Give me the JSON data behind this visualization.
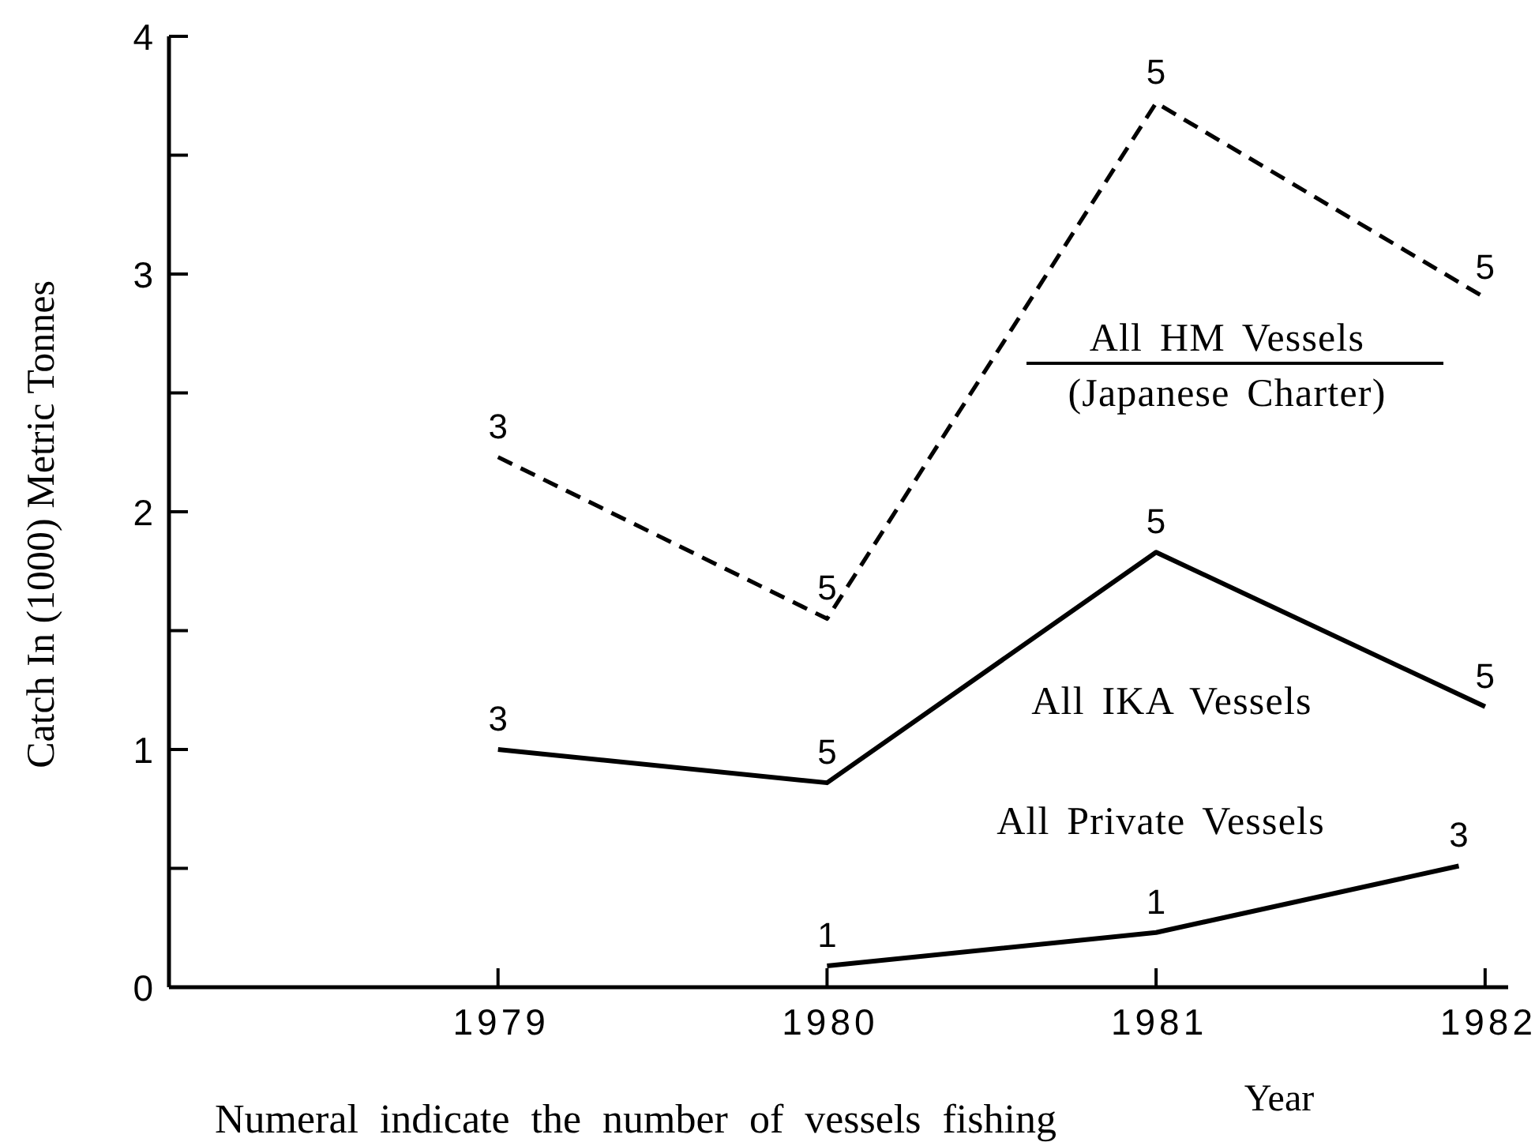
{
  "chart_data": {
    "type": "line",
    "x": [
      1979,
      1980,
      1981,
      1982
    ],
    "xlim": [
      1978,
      1982.07
    ],
    "xticks": [
      1979,
      1980,
      1981,
      1982
    ],
    "ylim": [
      0,
      4
    ],
    "yticks": [
      0,
      {
        "value": 0.5,
        "label": null
      },
      1,
      {
        "value": 1.5,
        "label": null
      },
      2,
      {
        "value": 2.5,
        "label": null
      },
      3,
      {
        "value": 3.5,
        "label": null
      },
      4
    ],
    "xlabel": "Year",
    "ylabel": "Catch In (1000) Metric Tonnes",
    "annotations": [
      "Numeral indicate the number of vessels fishing",
      {
        "text": "3",
        "x": 1979,
        "y": 2.23
      },
      {
        "text": "5",
        "x": 1980,
        "y": 1.55
      },
      {
        "text": "5",
        "x": 1981,
        "y": 3.72
      },
      {
        "text": "5",
        "x": 1982,
        "y": 2.9
      },
      {
        "text": "3",
        "x": 1979,
        "y": 1.0
      },
      {
        "text": "5",
        "x": 1980,
        "y": 0.86
      },
      {
        "text": "5",
        "x": 1981,
        "y": 1.83
      },
      {
        "text": "5",
        "x": 1982,
        "y": 1.18
      },
      {
        "text": "1",
        "x": 1980,
        "y": 0.09
      },
      {
        "text": "1",
        "x": 1981,
        "y": 0.23
      },
      {
        "text": "3",
        "x": 1981.92,
        "y": 0.51
      }
    ],
    "series": [
      {
        "name": "All HM Vessels\n(Japanese Charter)",
        "color": "#000000",
        "line_style": "dashed",
        "values": [
          2.23,
          1.55,
          3.72,
          2.9
        ]
      },
      {
        "name": "All IKA Vessels",
        "color": "#000000",
        "line_style": "solid",
        "values": [
          1.0,
          0.86,
          1.83,
          1.18
        ]
      },
      {
        "name": "All Private Vessels",
        "color": "#000000",
        "line_style": "solid",
        "x": [
          1980,
          1981,
          1981.92
        ],
        "values": [
          0.09,
          0.23,
          0.51
        ]
      }
    ]
  }
}
